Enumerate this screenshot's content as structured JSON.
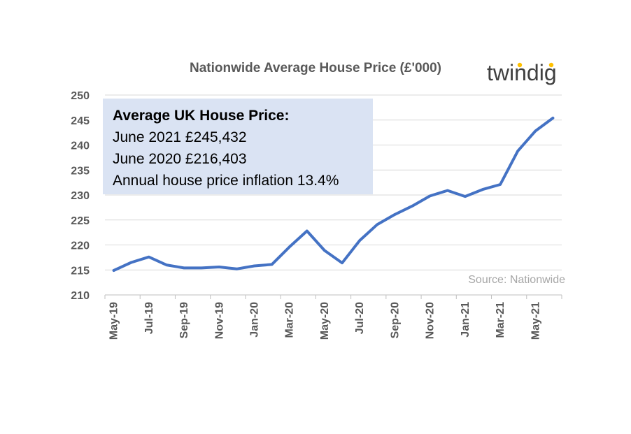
{
  "chart_data": {
    "type": "line",
    "title": "Nationwide Average House Price (£'000)",
    "xlabel": "",
    "ylabel": "",
    "ylim": [
      210,
      250
    ],
    "yticks": [
      210,
      215,
      220,
      225,
      230,
      235,
      240,
      245,
      250
    ],
    "ytick_labels": [
      "210",
      "215",
      "220",
      "225",
      "230",
      "235",
      "240",
      "245",
      "250"
    ],
    "grid": true,
    "legend": "none",
    "x": [
      "May-19",
      "Jun-19",
      "Jul-19",
      "Aug-19",
      "Sep-19",
      "Oct-19",
      "Nov-19",
      "Dec-19",
      "Jan-20",
      "Feb-20",
      "Mar-20",
      "Apr-20",
      "May-20",
      "Jun-20",
      "Jul-20",
      "Aug-20",
      "Sep-20",
      "Oct-20",
      "Nov-20",
      "Dec-20",
      "Jan-21",
      "Feb-21",
      "Mar-21",
      "Apr-21",
      "May-21",
      "Jun-21"
    ],
    "x_tick_labels": [
      "May-19",
      "Jul-19",
      "Sep-19",
      "Nov-19",
      "Jan-20",
      "Mar-20",
      "May-20",
      "Jul-20",
      "Sep-20",
      "Nov-20",
      "Jan-21",
      "Mar-21",
      "May-21"
    ],
    "series": [
      {
        "color": "#4472c4",
        "values": [
          214.9,
          216.5,
          217.6,
          216.0,
          215.4,
          215.4,
          215.6,
          215.2,
          215.8,
          216.1,
          219.6,
          222.8,
          218.9,
          216.4,
          220.9,
          224.1,
          226.1,
          227.8,
          229.8,
          230.9,
          229.7,
          231.1,
          232.1,
          238.8,
          242.8,
          245.4
        ]
      }
    ],
    "source": "Source: Nationwide"
  },
  "logo": {
    "text": "twindig",
    "dot_color": "#ffc000",
    "text_color": "#404040"
  },
  "info_box": {
    "heading": "Average UK House Price:",
    "lines": [
      "June 2021 £245,432",
      "June 2020 £216,403",
      "Annual house price inflation 13.4%"
    ],
    "background": "#dae3f3"
  }
}
